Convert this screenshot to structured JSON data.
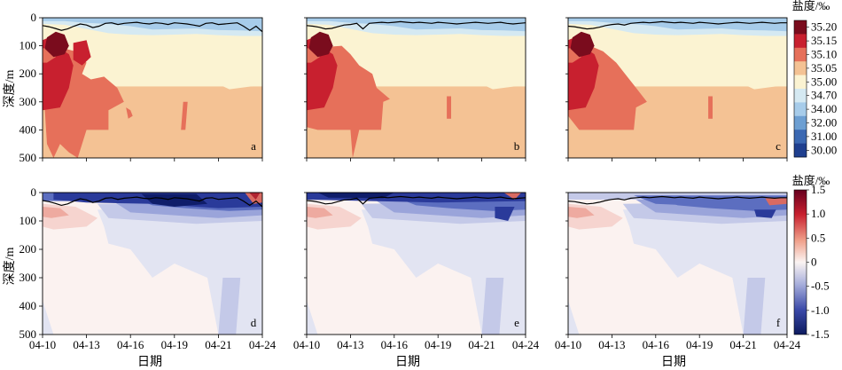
{
  "figure": {
    "top_colorbar_title": "盐度/‰",
    "bottom_colorbar_title": "盐度/‰",
    "ylabel": "深度/m",
    "xlabel": "日期"
  },
  "chart_data": {
    "type": "heatmap",
    "x_ticks": [
      "04-10",
      "04-13",
      "04-16",
      "04-19",
      "04-21",
      "04-24"
    ],
    "y_ticks": [
      0,
      100,
      200,
      300,
      400,
      500
    ],
    "ylim": [
      0,
      500
    ],
    "top_colorbar": {
      "labels": [
        "35.20",
        "35.15",
        "35.10",
        "35.05",
        "35.00",
        "34.70",
        "34.00",
        "32.00",
        "31.00",
        "30.00"
      ],
      "colors": [
        "#7a0c1d",
        "#c8202f",
        "#e6705a",
        "#f4c294",
        "#fbf3d2",
        "#d5e9f2",
        "#a7ccea",
        "#6d9fd2",
        "#3b68b2",
        "#1f3f8f"
      ]
    },
    "bottom_colorbar": {
      "labels": [
        "1.5",
        "1.0",
        "0.5",
        "0",
        "-0.5",
        "-1.0",
        "-1.5"
      ],
      "min": -1.5,
      "max": 1.5
    },
    "panels": [
      {
        "label": "a",
        "row": 0,
        "col": 0,
        "mld_depth": [
          28,
          32,
          38,
          45,
          40,
          30,
          22,
          26,
          35,
          30,
          20,
          18,
          24,
          20,
          18,
          16,
          20,
          22,
          18,
          20,
          24,
          18,
          20,
          22,
          26,
          30,
          20,
          18,
          24,
          22,
          20,
          18,
          30,
          45,
          30,
          50
        ]
      },
      {
        "label": "b",
        "row": 0,
        "col": 1,
        "mld_depth": [
          28,
          30,
          34,
          40,
          38,
          32,
          26,
          24,
          20,
          40,
          20,
          18,
          16,
          18,
          16,
          14,
          16,
          18,
          16,
          18,
          20,
          16,
          18,
          20,
          22,
          20,
          18,
          16,
          18,
          20,
          18,
          16,
          20,
          22,
          20,
          18
        ]
      },
      {
        "label": "c",
        "row": 0,
        "col": 2,
        "mld_depth": [
          30,
          32,
          36,
          40,
          38,
          34,
          28,
          24,
          22,
          26,
          20,
          18,
          16,
          18,
          16,
          14,
          16,
          18,
          16,
          18,
          20,
          16,
          18,
          20,
          22,
          20,
          18,
          16,
          18,
          20,
          18,
          16,
          18,
          20,
          18,
          18
        ]
      },
      {
        "label": "d",
        "row": 1,
        "col": 0,
        "mld_depth": [
          28,
          32,
          38,
          45,
          40,
          30,
          22,
          26,
          35,
          30,
          20,
          18,
          24,
          20,
          18,
          16,
          20,
          22,
          18,
          20,
          24,
          18,
          20,
          22,
          26,
          30,
          20,
          18,
          24,
          22,
          20,
          18,
          30,
          45,
          30,
          50
        ]
      },
      {
        "label": "e",
        "row": 1,
        "col": 1,
        "mld_depth": [
          28,
          30,
          34,
          40,
          38,
          32,
          26,
          24,
          20,
          40,
          20,
          18,
          16,
          18,
          16,
          14,
          16,
          18,
          16,
          18,
          20,
          16,
          18,
          20,
          22,
          20,
          18,
          16,
          18,
          20,
          18,
          16,
          20,
          22,
          20,
          18
        ]
      },
      {
        "label": "f",
        "row": 1,
        "col": 2,
        "mld_depth": [
          30,
          32,
          36,
          40,
          38,
          34,
          28,
          24,
          22,
          26,
          20,
          18,
          16,
          18,
          16,
          14,
          16,
          18,
          16,
          18,
          20,
          16,
          18,
          20,
          22,
          20,
          18,
          16,
          18,
          20,
          18,
          16,
          18,
          20,
          18,
          18
        ]
      }
    ]
  }
}
